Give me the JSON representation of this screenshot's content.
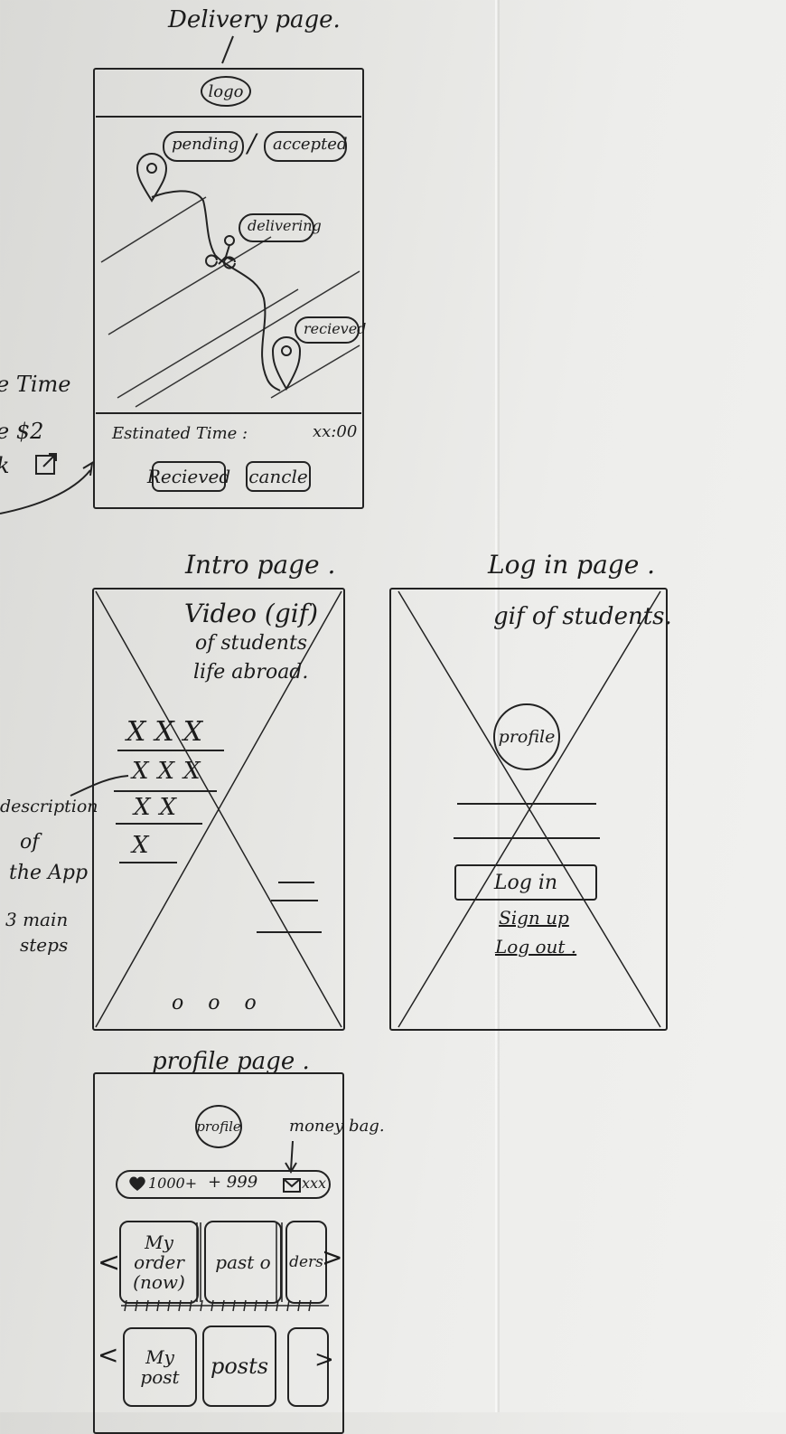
{
  "delivery": {
    "title": "Delivery page.",
    "logo": "logo",
    "status_pending": "pending",
    "status_slash": "/",
    "status_accepted": "accepted",
    "status_delivering": "delivering",
    "status_received": "recieved",
    "estimated_label": "Estinated Time :",
    "estimated_value": "xx:00",
    "received_button": "Recieved",
    "cancel_button": "cancle"
  },
  "left_note": {
    "line1": "e Time",
    "line2": "e $2",
    "line3": "k"
  },
  "intro": {
    "title": "Intro page .",
    "video_line1": "Video (gif)",
    "video_line2": "of students",
    "video_line3": "life abroad.",
    "row1": "XXX",
    "row2": "XXX",
    "row3": "XX",
    "row4": "X",
    "dots": "o o o"
  },
  "description_note": {
    "line1": "description",
    "line2": "of",
    "line3": "the App",
    "line4": "3 main",
    "line5": "steps"
  },
  "login": {
    "title": "Log in page .",
    "gif_text": "gif of students.",
    "profile": "profile",
    "login_button": "Log in",
    "signup_link": "Sign up",
    "logout_link": "Log out ."
  },
  "profile": {
    "title": "profile page .",
    "avatar": "profile",
    "money_bag_note": "money bag.",
    "likes": "1000+",
    "plus": "+ 999",
    "money_value": "xxx",
    "card_my_order_line1": "My order",
    "card_my_order_line2": "(now)",
    "card_past_orders": "past o",
    "card_orders_partial": "ders",
    "card_my_post": "My post",
    "card_posts": "posts",
    "arrow_left": "<",
    "arrow_right": ">"
  }
}
